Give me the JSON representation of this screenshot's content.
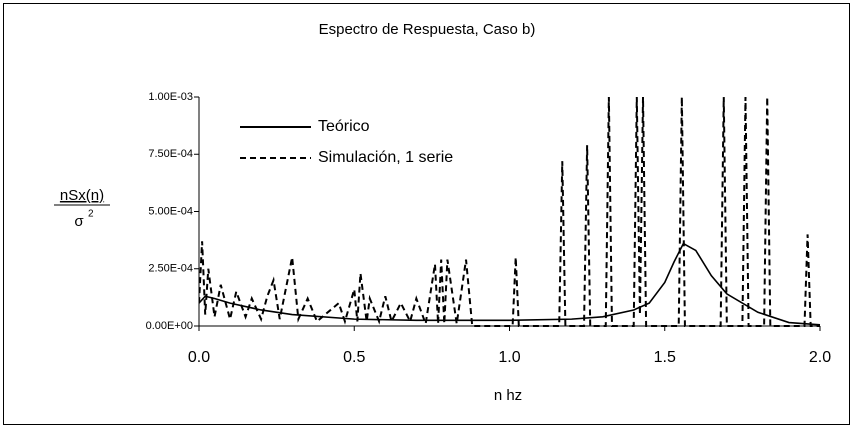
{
  "chart_data": {
    "type": "line",
    "title": "Espectro de Respuesta, Caso b)",
    "xlabel": "n hz",
    "ylabel": {
      "numerator": "nSx(n)",
      "denominator": "σ",
      "denominator_sup": "2"
    },
    "xlim": [
      0,
      2
    ],
    "xticks": [
      {
        "value": 0,
        "label": "0.0"
      },
      {
        "value": 0.5,
        "label": "0.5"
      },
      {
        "value": 1,
        "label": "1.0"
      },
      {
        "value": 1.5,
        "label": "1.5"
      },
      {
        "value": 2,
        "label": "2.0"
      }
    ],
    "ylim": [
      0,
      0.001
    ],
    "yticks": [
      {
        "value": 0,
        "label": "0.00E+00"
      },
      {
        "value": 0.00025,
        "label": "2.50E-04"
      },
      {
        "value": 0.0005,
        "label": "5.00E-04"
      },
      {
        "value": 0.00075,
        "label": "7.50E-04"
      },
      {
        "value": 0.001,
        "label": "1.00E-03"
      }
    ],
    "grid": false,
    "legend": "upper left",
    "series": [
      {
        "name": "Teórico",
        "color": "#000000",
        "dash": "solid",
        "x": [
          0.0,
          0.02,
          0.05,
          0.1,
          0.2,
          0.3,
          0.5,
          0.7,
          1.0,
          1.2,
          1.3,
          1.4,
          1.45,
          1.5,
          1.53,
          1.56,
          1.6,
          1.65,
          1.7,
          1.8,
          1.9,
          2.0
        ],
        "values": [
          0.0001,
          0.00013,
          0.00012,
          0.0001,
          7e-05,
          5e-05,
          3e-05,
          2.5e-05,
          2.5e-05,
          3e-05,
          4e-05,
          7e-05,
          0.0001,
          0.00019,
          0.00028,
          0.00036,
          0.00033,
          0.00022,
          0.00014,
          6e-05,
          1.5e-05,
          5e-06
        ]
      },
      {
        "name": "Simulación, 1 serie",
        "color": "#000000",
        "dash": "dashed",
        "x": [
          0.0,
          0.01,
          0.02,
          0.03,
          0.05,
          0.07,
          0.1,
          0.12,
          0.15,
          0.17,
          0.2,
          0.22,
          0.24,
          0.26,
          0.3,
          0.32,
          0.35,
          0.38,
          0.45,
          0.47,
          0.5,
          0.51,
          0.52,
          0.54,
          0.55,
          0.58,
          0.6,
          0.62,
          0.65,
          0.68,
          0.7,
          0.73,
          0.76,
          0.77,
          0.78,
          0.79,
          0.8,
          0.83,
          0.86,
          0.88,
          1.01,
          1.02,
          1.03,
          1.16,
          1.17,
          1.18,
          1.24,
          1.25,
          1.26,
          1.31,
          1.32,
          1.33,
          1.4,
          1.41,
          1.42,
          1.43,
          1.44,
          1.545,
          1.555,
          1.565,
          1.68,
          1.69,
          1.7,
          1.75,
          1.76,
          1.77,
          1.82,
          1.83,
          1.84,
          1.95,
          1.96,
          1.97,
          2.0
        ],
        "values": [
          0.0001,
          0.00037,
          5e-05,
          0.00025,
          4e-05,
          0.00018,
          3e-05,
          0.00015,
          4e-05,
          0.00012,
          3e-05,
          0.00013,
          0.0002,
          3e-05,
          0.0003,
          3e-05,
          0.00012,
          2e-05,
          0.0001,
          2e-05,
          0.00016,
          2e-05,
          0.00023,
          2e-05,
          0.00012,
          2e-05,
          0.00013,
          2e-05,
          0.0001,
          2e-05,
          0.00012,
          1e-05,
          0.00027,
          1e-05,
          0.00029,
          1e-05,
          0.00029,
          1e-05,
          0.00029,
          0,
          0,
          0.0003,
          0,
          0,
          0.00072,
          0,
          0,
          0.00079,
          0,
          0,
          0.001,
          0,
          0,
          0.001,
          5e-05,
          0.001,
          0,
          0,
          0.001,
          0,
          0,
          0.001,
          0,
          0,
          0.001,
          0,
          0,
          0.001,
          0,
          0,
          0.0004,
          0,
          0
        ]
      }
    ]
  }
}
